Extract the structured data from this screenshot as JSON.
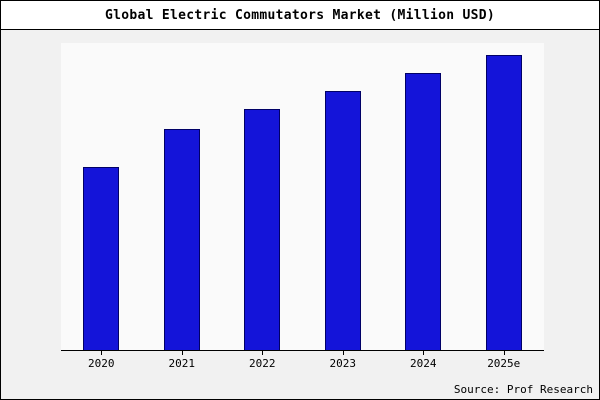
{
  "chart": {
    "title": "Global Electric Commutators Market (Million USD)",
    "source": "Source: Prof Research"
  },
  "chart_data": {
    "type": "bar",
    "title": "Global Electric Commutators Market (Million USD)",
    "categories": [
      "2020",
      "2021",
      "2022",
      "2023",
      "2024",
      "2025e"
    ],
    "values": [
      620,
      748,
      815,
      876,
      939,
      1000
    ],
    "xlabel": "",
    "ylabel": "",
    "ylim": [
      0,
      1040
    ],
    "grid": false,
    "legend": false,
    "y_axis_labels_visible": false,
    "bar_color": "#1414d9",
    "bar_border_color": "#000066",
    "figure_background": "#f1f1f1",
    "plot_background": "#fafafa",
    "source": "Source: Prof Research"
  }
}
